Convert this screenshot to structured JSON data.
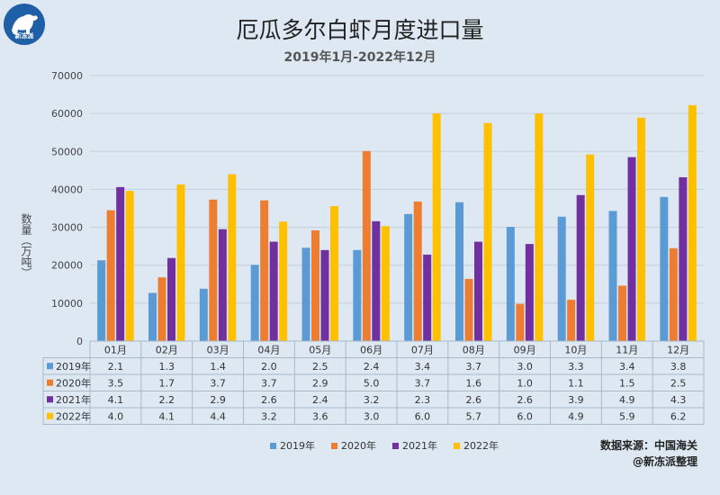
{
  "logo": {
    "text": "新冻派"
  },
  "source": {
    "line1": "数据来源：中国海关",
    "line2": "@新冻派整理"
  },
  "chart_data": {
    "type": "bar",
    "title": "厄瓜多尔白虾月度进口量",
    "subtitle": "2019年1月-2022年12月",
    "ylabel": "数量（万吨）",
    "xlabel": "",
    "ylim": [
      0,
      70000
    ],
    "yticks": [
      0,
      10000,
      20000,
      30000,
      40000,
      50000,
      60000,
      70000
    ],
    "grid": true,
    "legend": "bottom",
    "categories": [
      "01月",
      "02月",
      "03月",
      "04月",
      "05月",
      "06月",
      "07月",
      "08月",
      "09月",
      "10月",
      "11月",
      "12月"
    ],
    "series": [
      {
        "name": "2019年",
        "color": "#5b9bd5",
        "values": [
          21300,
          12700,
          13800,
          20100,
          24600,
          24000,
          33500,
          36600,
          30100,
          32800,
          34300,
          38000
        ],
        "labels": [
          "2.1",
          "1.3",
          "1.4",
          "2.0",
          "2.5",
          "2.4",
          "3.4",
          "3.7",
          "3.0",
          "3.3",
          "3.4",
          "3.8"
        ]
      },
      {
        "name": "2020年",
        "color": "#ed7d31",
        "values": [
          34500,
          16800,
          37300,
          37100,
          29200,
          50100,
          36800,
          16400,
          9800,
          10900,
          14600,
          24500
        ],
        "labels": [
          "3.5",
          "1.7",
          "3.7",
          "3.7",
          "2.9",
          "5.0",
          "3.7",
          "1.6",
          "1.0",
          "1.1",
          "1.5",
          "2.5"
        ]
      },
      {
        "name": "2021年",
        "color": "#7030a0",
        "values": [
          40600,
          21900,
          29500,
          26200,
          24000,
          31600,
          22800,
          26200,
          25600,
          38500,
          48500,
          43200
        ],
        "labels": [
          "4.1",
          "2.2",
          "2.9",
          "2.6",
          "2.4",
          "3.2",
          "2.3",
          "2.6",
          "2.6",
          "3.9",
          "4.9",
          "4.3"
        ]
      },
      {
        "name": "2022年",
        "color": "#ffc000",
        "values": [
          39600,
          41300,
          44000,
          31500,
          35600,
          30300,
          60000,
          57500,
          60000,
          49200,
          58900,
          62200
        ],
        "labels": [
          "4.0",
          "4.1",
          "4.4",
          "3.2",
          "3.6",
          "3.0",
          "6.0",
          "5.7",
          "6.0",
          "4.9",
          "5.9",
          "6.2"
        ]
      }
    ]
  }
}
